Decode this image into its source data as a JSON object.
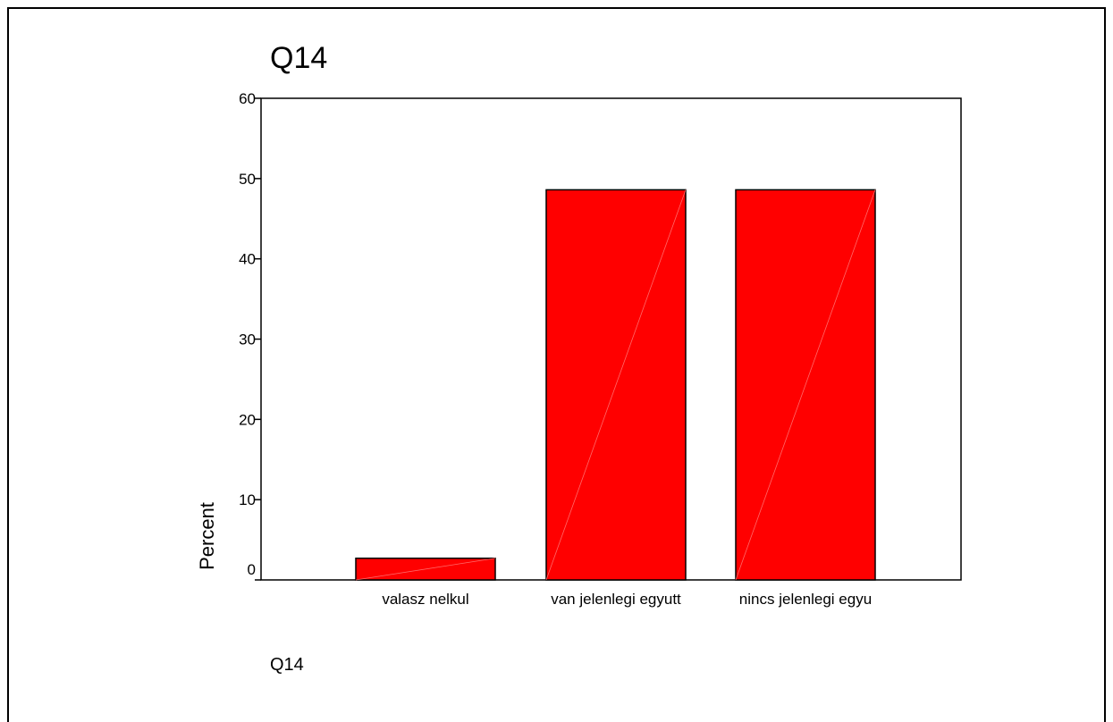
{
  "chart_data": {
    "type": "bar",
    "title": "Q14",
    "xlabel": "Q14",
    "ylabel": "Percent",
    "categories": [
      "valasz nelkul",
      "van jelenlegi egyutt",
      "nincs jelenlegi egyu"
    ],
    "values": [
      2.7,
      48.6,
      48.6
    ],
    "ylim": [
      0,
      60
    ],
    "yticks": [
      "0",
      "10",
      "20",
      "30",
      "40",
      "50",
      "60"
    ],
    "grid": false,
    "legend": "none",
    "bar_color": "#ff0000"
  }
}
